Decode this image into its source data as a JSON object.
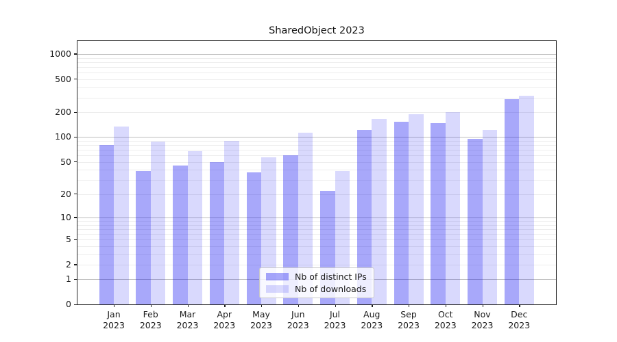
{
  "title": "SharedObject 2023",
  "chart_data": {
    "type": "bar",
    "title": "SharedObject 2023",
    "xlabel": "",
    "ylabel": "",
    "yscale": "log1p",
    "grid": true,
    "legend_position": "lower center",
    "categories": [
      {
        "month": "Jan",
        "year": "2023"
      },
      {
        "month": "Feb",
        "year": "2023"
      },
      {
        "month": "Mar",
        "year": "2023"
      },
      {
        "month": "Apr",
        "year": "2023"
      },
      {
        "month": "May",
        "year": "2023"
      },
      {
        "month": "Jun",
        "year": "2023"
      },
      {
        "month": "Jul",
        "year": "2023"
      },
      {
        "month": "Aug",
        "year": "2023"
      },
      {
        "month": "Sep",
        "year": "2023"
      },
      {
        "month": "Oct",
        "year": "2023"
      },
      {
        "month": "Nov",
        "year": "2023"
      },
      {
        "month": "Dec",
        "year": "2023"
      }
    ],
    "series": [
      {
        "name": "Nb of distinct IPs",
        "color": "#0000f057",
        "values": [
          80,
          39,
          45,
          50,
          37,
          60,
          22,
          121,
          152,
          148,
          95,
          285
        ]
      },
      {
        "name": "Nb of downloads",
        "color": "#0000f026",
        "values": [
          135,
          88,
          68,
          90,
          57,
          114,
          39,
          164,
          190,
          200,
          121,
          318
        ]
      }
    ],
    "y_ticks": [
      0,
      1,
      2,
      5,
      10,
      20,
      50,
      100,
      200,
      500,
      1000
    ],
    "y_gridlines": {
      "major": [
        1,
        10,
        100,
        1000
      ],
      "minor": [
        2,
        3,
        4,
        5,
        6,
        7,
        8,
        9,
        20,
        30,
        40,
        50,
        60,
        70,
        80,
        90,
        200,
        300,
        400,
        500,
        600,
        700,
        800,
        900
      ]
    },
    "ylim": [
      0,
      1430
    ],
    "colors": {
      "bar_distinct_ips": "#aaaaf9",
      "bar_downloads": "#dadafc",
      "grid_major": "#bcbcbc",
      "grid_minor": "#ededed",
      "spine": "#1f1f1f"
    }
  }
}
